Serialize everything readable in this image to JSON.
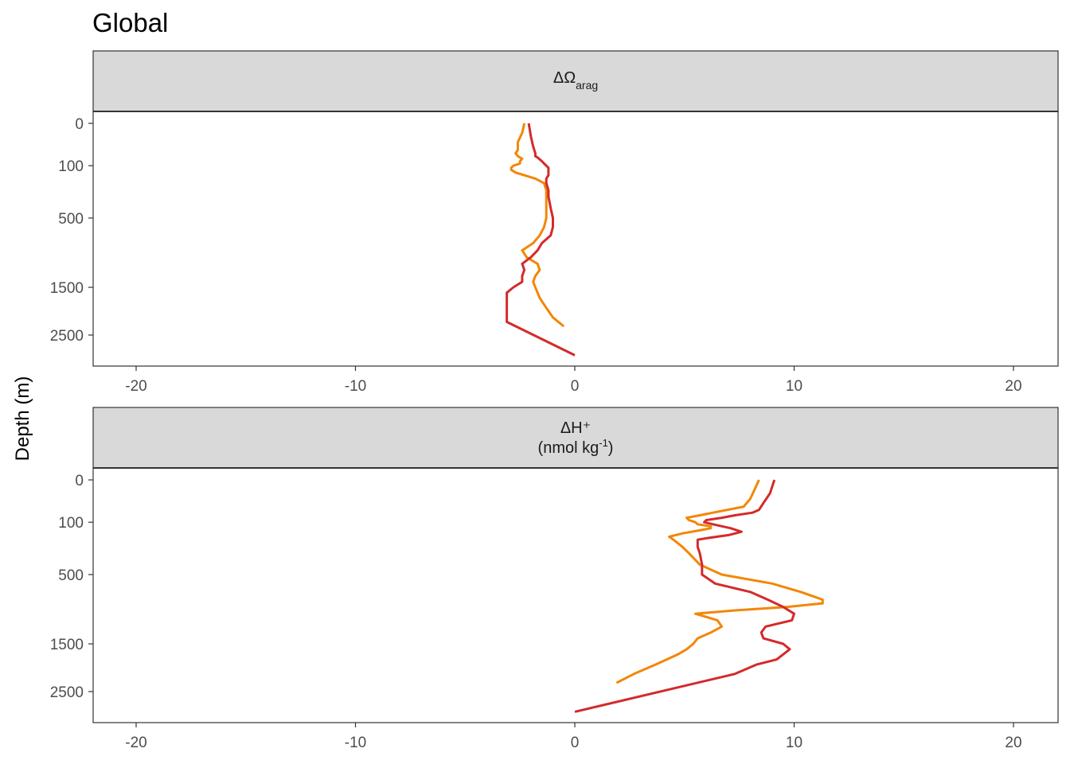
{
  "title": "Global",
  "ylabel": "Depth (m)",
  "chart_data": {
    "type": "line",
    "title": "Global",
    "ylabel": "Depth (m)",
    "xlim": [
      -22,
      22
    ],
    "x_ticks": [
      -20,
      -10,
      0,
      10,
      20
    ],
    "x_tick_labels": [
      "-20",
      "-10",
      "0",
      "10",
      "20"
    ],
    "y_ticks": [
      0,
      100,
      500,
      1500,
      2500
    ],
    "y_tick_labels": [
      "0",
      "100",
      "500",
      "1500",
      "2500"
    ],
    "y_scale": "reversed square-root",
    "grid": false,
    "series_colors": [
      "#f28705",
      "#d42a2a"
    ],
    "panels": [
      {
        "strip": {
          "main": "ΔΩ",
          "sub": "arag",
          "line2": ""
        },
        "series": [
          {
            "color": "#f28705",
            "points": [
              [
                -2.3,
                0
              ],
              [
                -2.4,
                5
              ],
              [
                -2.6,
                20
              ],
              [
                -2.6,
                30
              ],
              [
                -2.6,
                40
              ],
              [
                -2.7,
                50
              ],
              [
                -2.6,
                60
              ],
              [
                -2.4,
                70
              ],
              [
                -2.5,
                80
              ],
              [
                -2.5,
                90
              ],
              [
                -2.8,
                100
              ],
              [
                -2.9,
                110
              ],
              [
                -2.9,
                120
              ],
              [
                -2.7,
                135
              ],
              [
                -2.3,
                150
              ],
              [
                -1.8,
                170
              ],
              [
                -1.4,
                200
              ],
              [
                -1.3,
                250
              ],
              [
                -1.3,
                300
              ],
              [
                -1.3,
                400
              ],
              [
                -1.3,
                500
              ],
              [
                -1.4,
                600
              ],
              [
                -1.6,
                700
              ],
              [
                -1.9,
                800
              ],
              [
                -2.4,
                900
              ],
              [
                -2.2,
                1000
              ],
              [
                -1.7,
                1100
              ],
              [
                -1.6,
                1200
              ],
              [
                -1.8,
                1300
              ],
              [
                -1.9,
                1400
              ],
              [
                -1.8,
                1500
              ],
              [
                -1.6,
                1700
              ],
              [
                -1.3,
                1900
              ],
              [
                -1.0,
                2100
              ],
              [
                -0.5,
                2300
              ]
            ]
          },
          {
            "color": "#d42a2a",
            "points": [
              [
                -2.1,
                0
              ],
              [
                -2.0,
                10
              ],
              [
                -1.9,
                30
              ],
              [
                -1.8,
                50
              ],
              [
                -1.8,
                60
              ],
              [
                -1.7,
                65
              ],
              [
                -1.5,
                80
              ],
              [
                -1.4,
                90
              ],
              [
                -1.2,
                110
              ],
              [
                -1.2,
                125
              ],
              [
                -1.2,
                140
              ],
              [
                -1.2,
                150
              ],
              [
                -1.3,
                170
              ],
              [
                -1.3,
                180
              ],
              [
                -1.3,
                200
              ],
              [
                -1.2,
                250
              ],
              [
                -1.2,
                300
              ],
              [
                -1.1,
                400
              ],
              [
                -1.0,
                500
              ],
              [
                -1.0,
                600
              ],
              [
                -1.1,
                700
              ],
              [
                -1.5,
                800
              ],
              [
                -1.7,
                900
              ],
              [
                -2.0,
                1000
              ],
              [
                -2.4,
                1100
              ],
              [
                -2.3,
                1200
              ],
              [
                -2.4,
                1300
              ],
              [
                -2.4,
                1400
              ],
              [
                -2.8,
                1500
              ],
              [
                -3.1,
                1600
              ],
              [
                -3.1,
                1800
              ],
              [
                -3.1,
                2000
              ],
              [
                -3.1,
                2200
              ],
              [
                0.0,
                3000
              ]
            ]
          }
        ]
      },
      {
        "strip": {
          "main": "ΔH⁺",
          "sub": "",
          "line2": "(nmol kg",
          "line2_sup": "-1",
          "line2_end": ")"
        },
        "series": [
          {
            "color": "#f28705",
            "points": [
              [
                8.4,
                0
              ],
              [
                8.0,
                20
              ],
              [
                7.7,
                40
              ],
              [
                6.3,
                60
              ],
              [
                5.7,
                70
              ],
              [
                5.1,
                80
              ],
              [
                5.2,
                90
              ],
              [
                5.5,
                100
              ],
              [
                5.6,
                110
              ],
              [
                6.2,
                120
              ],
              [
                6.2,
                130
              ],
              [
                5.8,
                140
              ],
              [
                4.9,
                160
              ],
              [
                4.3,
                180
              ],
              [
                4.5,
                200
              ],
              [
                4.9,
                250
              ],
              [
                5.2,
                300
              ],
              [
                5.7,
                400
              ],
              [
                6.7,
                500
              ],
              [
                9.0,
                600
              ],
              [
                10.3,
                700
              ],
              [
                11.3,
                800
              ],
              [
                11.3,
                850
              ],
              [
                9.7,
                900
              ],
              [
                7.3,
                950
              ],
              [
                5.5,
                1000
              ],
              [
                6.5,
                1100
              ],
              [
                6.7,
                1200
              ],
              [
                6.2,
                1300
              ],
              [
                5.6,
                1400
              ],
              [
                5.4,
                1500
              ],
              [
                5.1,
                1600
              ],
              [
                4.7,
                1700
              ],
              [
                3.7,
                1900
              ],
              [
                2.7,
                2100
              ],
              [
                1.9,
                2300
              ]
            ]
          },
          {
            "color": "#d42a2a",
            "points": [
              [
                9.1,
                0
              ],
              [
                8.9,
                10
              ],
              [
                8.6,
                30
              ],
              [
                8.4,
                50
              ],
              [
                8.1,
                60
              ],
              [
                7.3,
                70
              ],
              [
                6.7,
                80
              ],
              [
                6.0,
                90
              ],
              [
                5.9,
                100
              ],
              [
                6.3,
                110
              ],
              [
                7.1,
                130
              ],
              [
                7.6,
                150
              ],
              [
                7.0,
                170
              ],
              [
                6.0,
                190
              ],
              [
                5.6,
                200
              ],
              [
                5.6,
                250
              ],
              [
                5.7,
                300
              ],
              [
                5.8,
                400
              ],
              [
                5.8,
                500
              ],
              [
                6.4,
                600
              ],
              [
                8.0,
                700
              ],
              [
                8.8,
                800
              ],
              [
                9.5,
                900
              ],
              [
                10.0,
                1000
              ],
              [
                9.9,
                1100
              ],
              [
                8.7,
                1200
              ],
              [
                8.5,
                1300
              ],
              [
                8.6,
                1400
              ],
              [
                9.5,
                1500
              ],
              [
                9.8,
                1600
              ],
              [
                9.5,
                1700
              ],
              [
                9.2,
                1800
              ],
              [
                8.3,
                1900
              ],
              [
                7.3,
                2100
              ],
              [
                0.0,
                3000
              ]
            ]
          }
        ]
      }
    ]
  }
}
